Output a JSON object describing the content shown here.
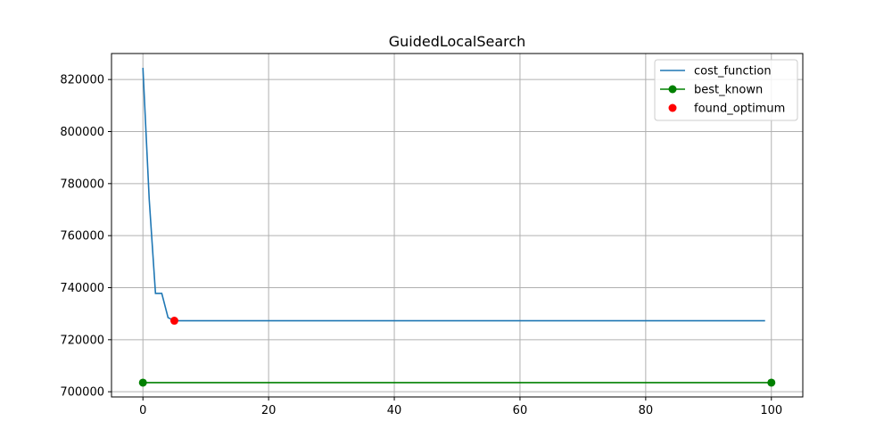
{
  "chart_data": {
    "type": "line",
    "title": "GuidedLocalSearch",
    "xlabel": "",
    "ylabel": "",
    "xlim": [
      -5,
      105
    ],
    "ylim": [
      698000,
      830000
    ],
    "x_ticks": [
      0,
      20,
      40,
      60,
      80,
      100
    ],
    "y_ticks": [
      700000,
      720000,
      740000,
      760000,
      780000,
      800000,
      820000
    ],
    "grid": true,
    "legend_position": "top-right",
    "series": [
      {
        "name": "cost_function",
        "style": "line",
        "color": "#1f77b4",
        "points": [
          [
            0,
            824500
          ],
          [
            1,
            774000
          ],
          [
            2,
            737800
          ],
          [
            3,
            737800
          ],
          [
            4,
            728500
          ],
          [
            5,
            727300
          ],
          [
            99,
            727300
          ]
        ]
      },
      {
        "name": "best_known",
        "style": "line-markers",
        "color": "#008000",
        "points": [
          [
            0,
            703500
          ],
          [
            100,
            703500
          ]
        ]
      },
      {
        "name": "found_optimum",
        "style": "markers",
        "color": "#ff0000",
        "points": [
          [
            5,
            727300
          ]
        ]
      }
    ]
  }
}
